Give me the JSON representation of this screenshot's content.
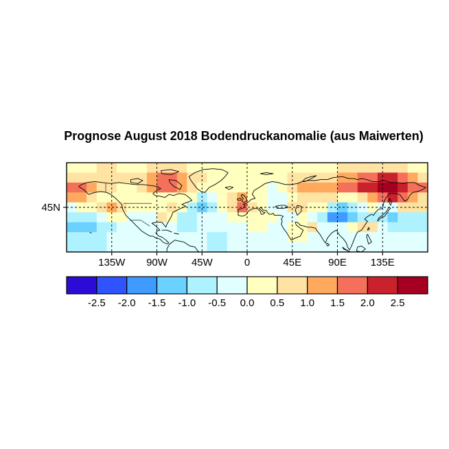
{
  "title": "Prognose August 2018 Bodendruckanomalie (aus Maiwerten)",
  "map": {
    "x_tick_labels": [
      "135W",
      "90W",
      "45W",
      "0",
      "45E",
      "90E",
      "135E"
    ],
    "x_tick_lons": [
      -135,
      -90,
      -45,
      0,
      45,
      90,
      135
    ],
    "y_tick_labels": [
      "45N"
    ],
    "y_tick_lats": [
      45
    ],
    "grid_lons": [
      -135,
      -90,
      -45,
      0,
      45,
      90,
      135
    ],
    "grid_lats": [
      45
    ]
  },
  "chart_data": {
    "type": "heatmap",
    "title": "Prognose August 2018 Bodendruckanomalie (aus Maiwerten)",
    "projection": "equirectangular",
    "lon_range": [
      -180,
      180
    ],
    "lat_range": [
      0,
      90
    ],
    "grid_on": true,
    "legend_position": "bottom",
    "lon_centers": [
      -175,
      -165,
      -155,
      -145,
      -135,
      -125,
      -115,
      -105,
      -95,
      -85,
      -75,
      -65,
      -55,
      -45,
      -35,
      -25,
      -15,
      -5,
      5,
      15,
      25,
      35,
      45,
      55,
      65,
      75,
      85,
      95,
      105,
      115,
      125,
      135,
      145,
      155,
      165,
      175
    ],
    "lat_centers": [
      85,
      75,
      65,
      55,
      45,
      35,
      25,
      15,
      5
    ],
    "values": [
      [
        0.25,
        0.25,
        0.25,
        0.75,
        0.75,
        0.25,
        0.25,
        0.25,
        0.75,
        0.75,
        0.75,
        0.75,
        0.25,
        0.25,
        0.25,
        0.25,
        0.25,
        0.25,
        0.25,
        0.25,
        0.25,
        0.25,
        0.25,
        0.25,
        0.25,
        0.25,
        0.25,
        0.75,
        0.75,
        0.75,
        0.75,
        0.75,
        0.75,
        0.75,
        0.25,
        0.25
      ],
      [
        0.75,
        0.75,
        0.75,
        0.75,
        0.75,
        0.75,
        0.75,
        0.75,
        1.25,
        1.75,
        1.75,
        1.25,
        0.75,
        0.75,
        0.25,
        0.25,
        0.25,
        0.25,
        0.25,
        0.25,
        0.25,
        0.25,
        0.75,
        0.75,
        0.75,
        0.75,
        0.75,
        1.25,
        1.25,
        1.75,
        1.75,
        2.25,
        2.25,
        1.75,
        1.25,
        0.75
      ],
      [
        1.75,
        1.75,
        1.25,
        0.75,
        0.75,
        0.25,
        0.25,
        0.75,
        1.25,
        1.75,
        1.75,
        1.25,
        0.75,
        0.25,
        0.25,
        0.25,
        0.25,
        0.25,
        0.25,
        0.25,
        -0.25,
        0.25,
        0.75,
        1.25,
        1.25,
        1.25,
        1.25,
        1.75,
        1.75,
        2.25,
        2.25,
        2.75,
        2.75,
        2.25,
        1.75,
        1.75
      ],
      [
        1.25,
        1.25,
        0.75,
        0.25,
        0.25,
        0.25,
        0.25,
        0.25,
        0.25,
        0.25,
        0.25,
        0.25,
        0.25,
        -0.75,
        -0.25,
        0.25,
        0.75,
        1.25,
        0.25,
        0.25,
        -0.25,
        -0.25,
        0.25,
        0.75,
        0.75,
        0.75,
        0.75,
        0.25,
        0.25,
        0.75,
        1.25,
        1.75,
        2.25,
        1.75,
        1.25,
        0.75
      ],
      [
        -0.25,
        0.25,
        0.25,
        0.75,
        1.25,
        0.75,
        0.25,
        0.25,
        0.25,
        0.25,
        0.75,
        0.25,
        -0.75,
        -1.25,
        -0.75,
        0.25,
        0.75,
        1.75,
        0.75,
        0.25,
        -0.25,
        -0.25,
        0.75,
        0.75,
        0.25,
        0.25,
        -0.75,
        -1.25,
        -0.75,
        -0.25,
        0.25,
        -0.25,
        -0.25,
        0.75,
        0.75,
        0.75
      ],
      [
        -0.75,
        -0.75,
        -0.75,
        -0.25,
        0.25,
        0.25,
        -0.25,
        -0.25,
        -0.25,
        0.75,
        0.25,
        -0.75,
        -0.75,
        -0.25,
        -0.25,
        -0.25,
        0.25,
        0.25,
        0.25,
        0.25,
        0.25,
        -0.25,
        -0.25,
        0.25,
        -0.25,
        -0.75,
        -1.75,
        -1.75,
        -1.25,
        -0.75,
        -0.75,
        -0.75,
        -1.25,
        -0.75,
        -0.75,
        -0.75
      ],
      [
        -1.25,
        -1.25,
        -1.25,
        -0.75,
        -0.75,
        -0.25,
        -0.25,
        -0.25,
        -0.25,
        -0.25,
        -0.25,
        -0.75,
        -0.75,
        -0.25,
        -0.25,
        -0.25,
        -0.25,
        -0.25,
        0.25,
        0.25,
        -0.25,
        -0.25,
        0.25,
        0.25,
        0.75,
        -0.25,
        -0.25,
        -0.25,
        0.25,
        0.75,
        0.75,
        -0.25,
        -0.75,
        -0.75,
        -0.75,
        -0.75
      ],
      [
        -0.75,
        -0.75,
        -0.75,
        -0.75,
        -0.25,
        -0.25,
        -0.25,
        -0.25,
        -0.25,
        -0.25,
        -0.25,
        -0.25,
        -0.25,
        -0.25,
        -0.75,
        -0.75,
        -0.25,
        -0.25,
        -0.25,
        -0.25,
        -0.25,
        -0.25,
        0.25,
        0.25,
        -0.25,
        -0.25,
        -0.25,
        -0.25,
        -0.25,
        -0.25,
        -0.25,
        -0.25,
        -0.25,
        -0.25,
        -0.25,
        -0.25
      ],
      [
        -0.75,
        -0.75,
        -0.75,
        -0.75,
        -0.25,
        -0.25,
        -0.25,
        -0.25,
        -0.25,
        -0.25,
        -0.25,
        -0.25,
        -0.25,
        -0.25,
        -0.75,
        -0.75,
        -0.25,
        -0.25,
        -0.25,
        -0.25,
        -0.25,
        -0.25,
        -0.25,
        -0.25,
        -0.25,
        -0.25,
        -0.25,
        -0.25,
        -0.25,
        -0.25,
        -0.25,
        -0.25,
        -0.25,
        -0.25,
        -0.25,
        -0.25
      ]
    ],
    "colorbar": {
      "breaks": [
        -2.5,
        -2.0,
        -1.5,
        -1.0,
        -0.5,
        0.0,
        0.5,
        1.0,
        1.5,
        2.0,
        2.5
      ],
      "labels": [
        "-2.5",
        "-2.0",
        "-1.5",
        "-1.0",
        "-0.5",
        "0.0",
        "0.5",
        "1.0",
        "1.5",
        "2.0",
        "2.5"
      ],
      "colors": [
        "#2B0BD5",
        "#2E53FF",
        "#3F9BFF",
        "#6BD1FF",
        "#AFF2FF",
        "#E1FFFF",
        "#FFFFBF",
        "#FFE3A3",
        "#FFA95E",
        "#F4705B",
        "#C9222C",
        "#A50021"
      ]
    }
  }
}
